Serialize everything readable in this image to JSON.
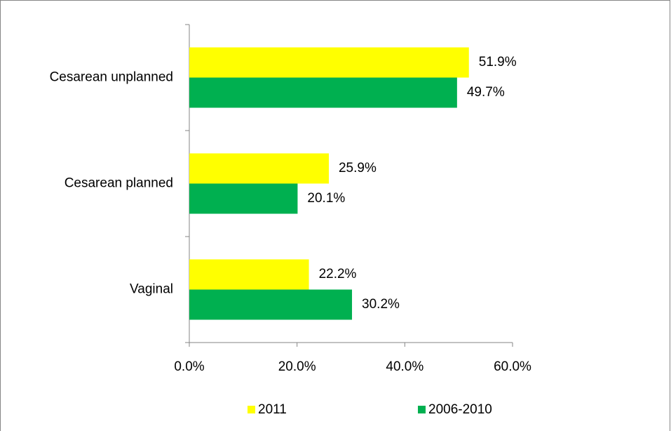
{
  "chart_data": {
    "type": "hbar",
    "categories": [
      "Cesarean unplanned",
      "Cesarean planned",
      "Vaginal"
    ],
    "series": [
      {
        "name": "2011",
        "color": "#ffff00",
        "values": [
          51.9,
          25.9,
          22.2
        ],
        "value_labels": [
          "51.9%",
          "25.9%",
          "22.2%"
        ]
      },
      {
        "name": "2006-2010",
        "color": "#00b050",
        "values": [
          49.7,
          20.1,
          30.2
        ],
        "value_labels": [
          "49.7%",
          "20.1%",
          "30.2%"
        ]
      }
    ],
    "xlim": [
      0,
      60
    ],
    "xticks": [
      {
        "value": 0,
        "label": "0.0%"
      },
      {
        "value": 20,
        "label": "20.0%"
      },
      {
        "value": 40,
        "label": "40.0%"
      },
      {
        "value": 60,
        "label": "60.0%"
      }
    ],
    "grid": false,
    "legend": "bottom"
  }
}
